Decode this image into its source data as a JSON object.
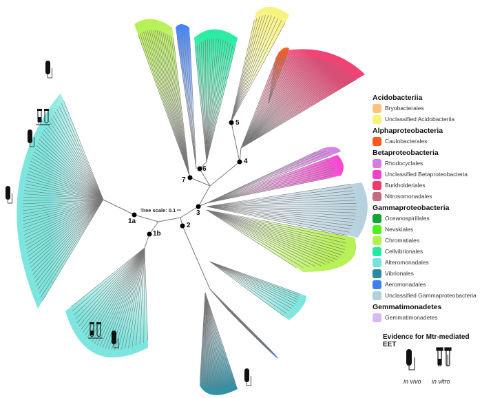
{
  "tree_scale_label": "Tree scale: 0.1",
  "node_labels": [
    "1a",
    "1b",
    "2",
    "3",
    "4",
    "5",
    "6",
    "7"
  ],
  "legend": {
    "groups": [
      {
        "title": "Acidobacteriia",
        "items": [
          {
            "label": "Bryobacterales",
            "color": "#fcc47a"
          },
          {
            "label": "Unclassified Acidobacteriia",
            "color": "#f7f27a"
          }
        ]
      },
      {
        "title": "Alphaproteobacteria",
        "items": [
          {
            "label": "Caulobacterales",
            "color": "#fb5a1e"
          }
        ]
      },
      {
        "title": "Betaproteobacteria",
        "items": [
          {
            "label": "Rhodocyclales",
            "color": "#d37de0"
          },
          {
            "label": "Unclassified Betaproteobacteria",
            "color": "#f73fcf"
          },
          {
            "label": "Burkholderiales",
            "color": "#ee3a6c"
          },
          {
            "label": "Nitrosomonadales",
            "color": "#c66a80"
          }
        ]
      },
      {
        "title": "Gammaproteobacteria",
        "items": [
          {
            "label": "Oceanospirillales",
            "color": "#12a535"
          },
          {
            "label": "Nevskiales",
            "color": "#4cf01a"
          },
          {
            "label": "Chromatiales",
            "color": "#b4f04e"
          },
          {
            "label": "Cellvibrionales",
            "color": "#22eaa0"
          },
          {
            "label": "Alteromonadales",
            "color": "#76e4dc"
          },
          {
            "label": "Vibrionales",
            "color": "#2a8aa0"
          },
          {
            "label": "Aeromonadales",
            "color": "#407ef0"
          },
          {
            "label": "Unclassified Gammaproteobacteria",
            "color": "#b2cfdc"
          }
        ]
      },
      {
        "title": "Gemmatimonadetes",
        "items": [
          {
            "label": "Gemmatimonadetes",
            "color": "#d7b8f3"
          }
        ]
      }
    ],
    "evidence_title": "Evidence for Mtr-mediated EET",
    "evidence": [
      {
        "label": "in vivo",
        "icon": "capsule-electrode-icon"
      },
      {
        "label": "in vitro",
        "icon": "test-tubes-icon"
      }
    ]
  }
}
